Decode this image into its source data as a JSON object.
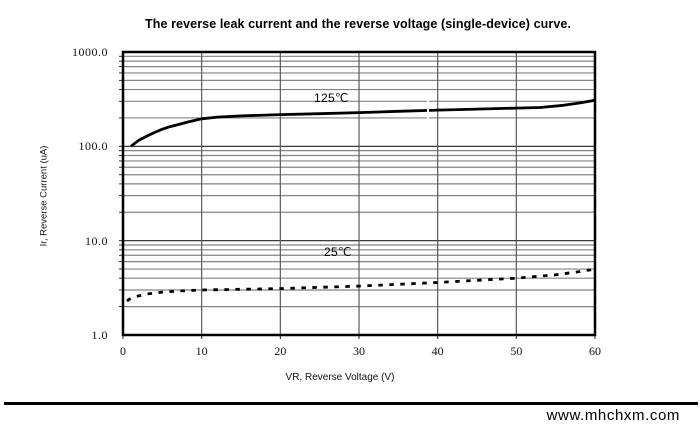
{
  "header": {
    "title": "The reverse leak current and the reverse voltage (single-device) curve."
  },
  "footer": {
    "website": "www.mhchxm.com"
  },
  "chart_data": {
    "type": "line",
    "title": "The reverse leak current and the reverse voltage (single-device) curve.",
    "xlabel": "VR, Reverse Voltage (V)",
    "ylabel": "Ir, Reverse Current (uA)",
    "x_scale": "linear",
    "y_scale": "log",
    "xlim": [
      0,
      60
    ],
    "ylim": [
      1,
      1000
    ],
    "x_ticks": [
      0,
      10,
      20,
      30,
      40,
      50,
      60
    ],
    "y_ticks": [
      1000,
      100,
      10,
      1
    ],
    "y_tick_labels": [
      "1000.0",
      "100.0",
      "10.0",
      "1.0"
    ],
    "grid": {
      "vertical_lines_every_volts": 10,
      "horizontal_lines": "log decades with minor lines at 2-9 per decade",
      "minor_color": "#848484",
      "major_color": "#222222",
      "vertical_color": "#5a5a5a",
      "border_color": "#000000"
    },
    "legend_position": "inline labels above curves",
    "series": [
      {
        "name": "125℃",
        "line_style": "solid",
        "color": "#000000",
        "points": [
          [
            1,
            100
          ],
          [
            2,
            116
          ],
          [
            3,
            128
          ],
          [
            4,
            140
          ],
          [
            5,
            152
          ],
          [
            6,
            162
          ],
          [
            7,
            170
          ],
          [
            8,
            179
          ],
          [
            10,
            196
          ],
          [
            12,
            204
          ],
          [
            15,
            210
          ],
          [
            20,
            217
          ],
          [
            25,
            222
          ],
          [
            30,
            228
          ],
          [
            35,
            235
          ],
          [
            40,
            242
          ],
          [
            45,
            248
          ],
          [
            50,
            254
          ],
          [
            53,
            258
          ],
          [
            56,
            272
          ],
          [
            58,
            288
          ],
          [
            60,
            308
          ]
        ]
      },
      {
        "name": "25℃",
        "line_style": "dotted",
        "color": "#000000",
        "points": [
          [
            0.5,
            2.3
          ],
          [
            1,
            2.45
          ],
          [
            2,
            2.6
          ],
          [
            3,
            2.72
          ],
          [
            5,
            2.85
          ],
          [
            7,
            2.93
          ],
          [
            10,
            3.0
          ],
          [
            15,
            3.05
          ],
          [
            20,
            3.1
          ],
          [
            25,
            3.2
          ],
          [
            30,
            3.3
          ],
          [
            35,
            3.45
          ],
          [
            40,
            3.6
          ],
          [
            45,
            3.8
          ],
          [
            50,
            4.0
          ],
          [
            55,
            4.35
          ],
          [
            58,
            4.7
          ],
          [
            60,
            5.0
          ]
        ]
      }
    ]
  }
}
